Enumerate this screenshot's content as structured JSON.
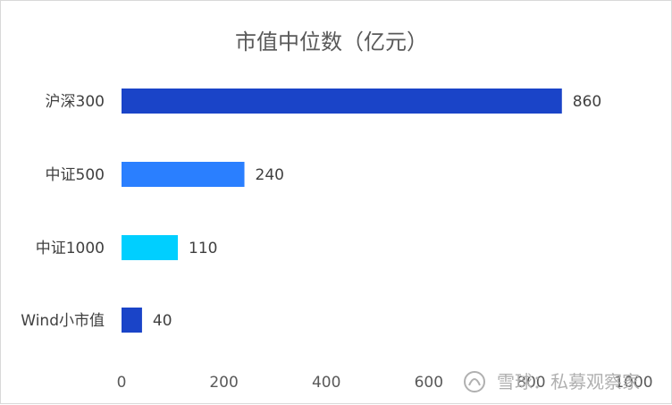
{
  "chart_data": {
    "type": "bar",
    "orientation": "horizontal",
    "title": "市值中位数（亿元）",
    "categories": [
      "沪深300",
      "中证500",
      "中证1000",
      "Wind小市值"
    ],
    "values": [
      860,
      240,
      110,
      40
    ],
    "colors": [
      "#1a44c8",
      "#2a7fff",
      "#00cfff",
      "#1a44c8"
    ],
    "xlim": [
      0,
      1000
    ],
    "xticks": [
      0,
      200,
      400,
      600,
      800,
      1000
    ],
    "xtick_labels": [
      "0",
      "200",
      "400",
      "600",
      "800",
      "1000"
    ],
    "grid": false,
    "data_labels": true
  },
  "watermark": {
    "text": "雪球：私募观察家"
  }
}
